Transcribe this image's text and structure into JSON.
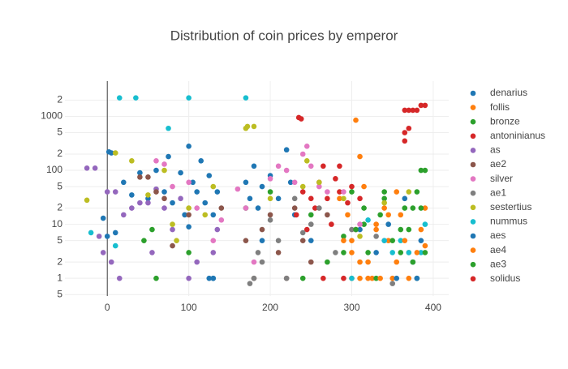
{
  "chart_data": {
    "type": "scatter",
    "title": "Distribution of coin prices by emperor",
    "ylog": true,
    "grid": true,
    "zeroline": true,
    "legend": "right",
    "xlim": [
      -52,
      419
    ],
    "xticks": [
      0,
      100,
      200,
      300,
      400
    ],
    "ylim": [
      0.47,
      4500
    ],
    "yticks": [
      {
        "value": 0.5,
        "label": "5"
      },
      1,
      2,
      5,
      10,
      {
        "value": 20,
        "label": "2"
      },
      {
        "value": 50,
        "label": "5"
      },
      100,
      {
        "value": 200,
        "label": "2"
      },
      {
        "value": 500,
        "label": "5"
      },
      1000,
      {
        "value": 2000,
        "label": "2"
      }
    ],
    "series": [
      {
        "name": "denarius",
        "color": "#1f77b4",
        "x": [
          -5,
          2,
          5,
          20,
          30,
          40,
          50,
          60,
          70,
          75,
          80,
          90,
          95,
          100,
          105,
          110,
          115,
          120,
          125,
          130,
          135,
          170,
          175,
          180,
          185,
          190,
          200,
          210,
          220,
          225,
          230,
          125,
          130
        ],
        "values": [
          13,
          220,
          210,
          60,
          35,
          90,
          30,
          100,
          40,
          180,
          25,
          90,
          15,
          280,
          60,
          40,
          150,
          25,
          80,
          15,
          40,
          60,
          30,
          120,
          20,
          50,
          80,
          30,
          240,
          60,
          15,
          1,
          1
        ]
      },
      {
        "name": "follis",
        "color": "#ff7f0e",
        "x": [
          285,
          295,
          300,
          305,
          310,
          315,
          320,
          325,
          330,
          340,
          345,
          350,
          355,
          360,
          370,
          380,
          390,
          310,
          300
        ],
        "values": [
          30,
          15,
          5,
          850,
          180,
          50,
          2,
          1,
          10,
          20,
          5,
          1,
          40,
          15,
          3,
          1,
          20,
          1,
          1
        ]
      },
      {
        "name": "bronze",
        "color": "#2ca02c",
        "x": [
          45,
          55,
          60,
          100,
          170,
          200,
          240,
          250,
          270,
          290,
          300,
          315,
          330,
          340,
          360,
          375,
          385,
          390
        ],
        "values": [
          5,
          8,
          1,
          3,
          20,
          40,
          1,
          15,
          2,
          6,
          40,
          10,
          1,
          30,
          8,
          20,
          100,
          100
        ]
      },
      {
        "name": "antoninianus",
        "color": "#d62728",
        "x": [
          232,
          238,
          240,
          245,
          250,
          255,
          260,
          265,
          270,
          275,
          280,
          285,
          290,
          295,
          300,
          305,
          310,
          265,
          285
        ],
        "values": [
          15,
          900,
          40,
          8,
          30,
          20,
          60,
          1,
          30,
          10,
          70,
          40,
          1,
          25,
          50,
          8,
          30,
          120,
          120
        ]
      },
      {
        "name": "as",
        "color": "#9467bd",
        "x": [
          -25,
          -15,
          -10,
          -5,
          0,
          5,
          10,
          15,
          20,
          30,
          40,
          50,
          55,
          60,
          70,
          80,
          90,
          100,
          110,
          130,
          135
        ],
        "values": [
          110,
          110,
          6,
          3,
          40,
          2,
          40,
          1,
          15,
          20,
          25,
          25,
          3,
          45,
          20,
          8,
          30,
          1,
          2,
          3,
          8
        ]
      },
      {
        "name": "ae2",
        "color": "#8c564b",
        "x": [
          40,
          50,
          60,
          70,
          80,
          100,
          140,
          170,
          180,
          190,
          200,
          210,
          220,
          230,
          240,
          250,
          270
        ],
        "values": [
          75,
          75,
          40,
          30,
          4,
          15,
          20,
          5,
          1,
          8,
          15,
          3,
          1,
          20,
          5,
          2,
          15
        ]
      },
      {
        "name": "silver",
        "color": "#e377c2",
        "x": [
          60,
          70,
          80,
          100,
          110,
          130,
          140,
          160,
          170,
          180,
          200,
          210,
          220,
          230,
          240,
          245,
          250,
          260,
          270,
          290,
          310,
          340
        ],
        "values": [
          150,
          130,
          50,
          60,
          20,
          5,
          12,
          45,
          20,
          2,
          70,
          120,
          100,
          60,
          200,
          280,
          120,
          50,
          40,
          40,
          10,
          5
        ]
      },
      {
        "name": "ae1",
        "color": "#7f7f7f",
        "x": [
          175,
          180,
          185,
          190,
          200,
          210,
          220,
          230,
          240,
          250,
          260,
          280,
          300,
          330,
          350
        ],
        "values": [
          0.8,
          1,
          3,
          2,
          12,
          5,
          1,
          30,
          7,
          10,
          20,
          3,
          8,
          6,
          0.8
        ]
      },
      {
        "name": "sestertius",
        "color": "#bcbd22",
        "x": [
          -25,
          10,
          30,
          50,
          70,
          80,
          85,
          100,
          120,
          130,
          170,
          172,
          180,
          200,
          240,
          245,
          260,
          290,
          310,
          340,
          370
        ],
        "values": [
          28,
          210,
          150,
          35,
          100,
          10,
          5,
          20,
          15,
          50,
          600,
          650,
          650,
          30,
          50,
          150,
          60,
          30,
          6,
          25,
          40
        ]
      },
      {
        "name": "nummus",
        "color": "#17becf",
        "x": [
          15,
          35,
          100,
          170,
          75,
          10,
          -20,
          300,
          320,
          340,
          350,
          360,
          370,
          380,
          385,
          390
        ],
        "values": [
          2200,
          2200,
          2200,
          2200,
          600,
          4,
          7,
          1,
          12,
          5,
          3,
          5,
          3,
          1,
          3,
          10
        ]
      },
      {
        "name": "aes",
        "color": "#1f77b4",
        "x": [
          0,
          10,
          100,
          130,
          190,
          250,
          310,
          330,
          345,
          355,
          365,
          375,
          380,
          385
        ],
        "values": [
          6,
          7,
          9,
          1,
          5,
          5,
          8,
          3,
          10,
          1,
          30,
          2,
          1,
          5
        ]
      },
      {
        "name": "ae4",
        "color": "#ff7f0e",
        "x": [
          290,
          300,
          310,
          320,
          330,
          335,
          345,
          355,
          365,
          370,
          380,
          385,
          390
        ],
        "values": [
          5,
          3,
          2,
          1,
          8,
          1,
          15,
          2,
          5,
          1,
          3,
          8,
          4
        ]
      },
      {
        "name": "ae3",
        "color": "#2ca02c",
        "x": [
          290,
          305,
          315,
          320,
          335,
          340,
          350,
          360,
          365,
          370,
          375,
          380,
          385,
          390
        ],
        "values": [
          3,
          8,
          20,
          3,
          15,
          40,
          5,
          3,
          20,
          8,
          2,
          40,
          20,
          3
        ]
      },
      {
        "name": "solidus",
        "color": "#d62728",
        "x": [
          365,
          370,
          375,
          380,
          385,
          390,
          365,
          365,
          370,
          235
        ],
        "values": [
          1300,
          1300,
          1300,
          1300,
          1600,
          1600,
          500,
          350,
          600,
          950
        ]
      }
    ]
  }
}
